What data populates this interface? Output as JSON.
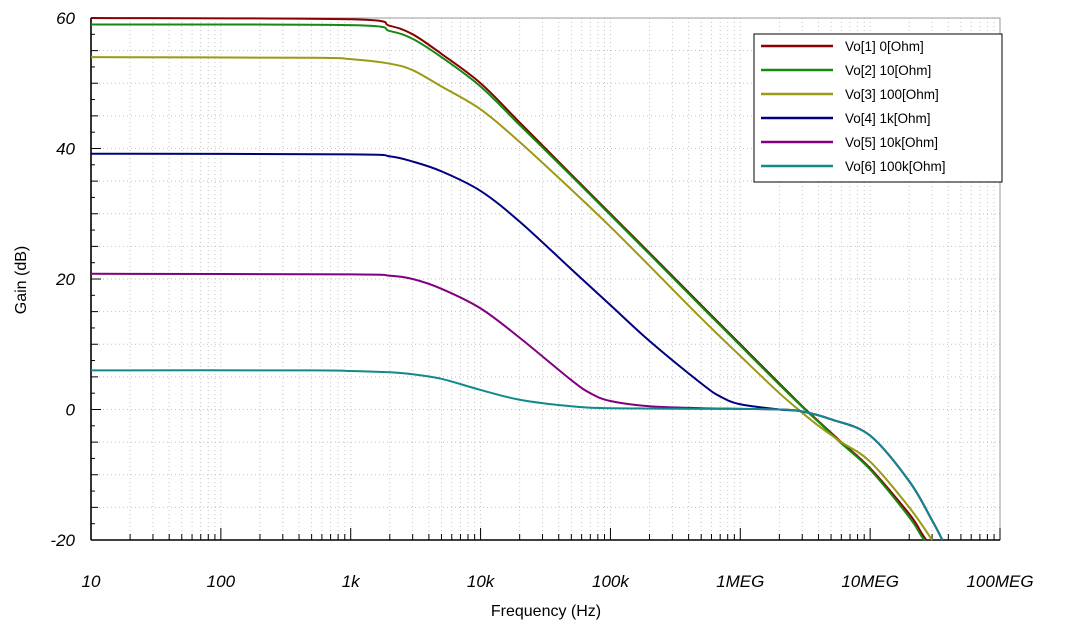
{
  "chart_data": {
    "type": "line",
    "xlabel": "Frequency (Hz)",
    "ylabel": "Gain (dB)",
    "x_scale": "log",
    "xlim": [
      10,
      100000000
    ],
    "ylim": [
      -20,
      60
    ],
    "grid": true,
    "legend_position": "top-right",
    "x_ticks": [
      {
        "value": 10,
        "label": "10"
      },
      {
        "value": 100,
        "label": "100"
      },
      {
        "value": 1000,
        "label": "1k"
      },
      {
        "value": 10000,
        "label": "10k"
      },
      {
        "value": 100000,
        "label": "100k"
      },
      {
        "value": 1000000,
        "label": "1MEG"
      },
      {
        "value": 10000000,
        "label": "10MEG"
      },
      {
        "value": 100000000,
        "label": "100MEG"
      }
    ],
    "y_ticks": [
      {
        "value": 60,
        "label": "60"
      },
      {
        "value": 40,
        "label": "40"
      },
      {
        "value": 20,
        "label": "20"
      },
      {
        "value": 0,
        "label": "0"
      },
      {
        "value": -20,
        "label": "-20"
      }
    ],
    "series": [
      {
        "name": "Vo[1]  0[Ohm]",
        "color": "#8b0000",
        "points": [
          [
            10,
            60
          ],
          [
            1000,
            59.8
          ],
          [
            2000,
            58.8
          ],
          [
            3000,
            57.5
          ],
          [
            5000,
            54.5
          ],
          [
            10000,
            50
          ],
          [
            20000,
            44
          ],
          [
            50000,
            36
          ],
          [
            100000,
            30
          ],
          [
            200000,
            24
          ],
          [
            500000,
            16
          ],
          [
            1000000,
            10
          ],
          [
            2000000,
            4
          ],
          [
            3000000,
            0.5
          ],
          [
            4000000,
            -1.8
          ],
          [
            6000000,
            -5
          ],
          [
            10000000,
            -9
          ],
          [
            20000000,
            -16
          ],
          [
            25000000,
            -19
          ],
          [
            27000000,
            -20
          ]
        ]
      },
      {
        "name": "Vo[2]  10[Ohm]",
        "color": "#138a13",
        "points": [
          [
            10,
            59
          ],
          [
            1000,
            58.9
          ],
          [
            2000,
            58
          ],
          [
            3000,
            56.8
          ],
          [
            5000,
            54
          ],
          [
            10000,
            49.5
          ],
          [
            20000,
            43.6
          ],
          [
            50000,
            35.8
          ],
          [
            100000,
            29.8
          ],
          [
            200000,
            23.8
          ],
          [
            500000,
            15.8
          ],
          [
            1000000,
            9.8
          ],
          [
            2000000,
            3.8
          ],
          [
            3000000,
            0.4
          ],
          [
            4000000,
            -1.9
          ],
          [
            6000000,
            -5.2
          ],
          [
            10000000,
            -9.2
          ],
          [
            20000000,
            -16.5
          ],
          [
            25000000,
            -19.5
          ],
          [
            26500000,
            -20
          ]
        ]
      },
      {
        "name": "Vo[3]  100[Ohm]",
        "color": "#9a9a14",
        "points": [
          [
            10,
            54
          ],
          [
            500,
            53.9
          ],
          [
            1000,
            53.7
          ],
          [
            2000,
            53
          ],
          [
            3000,
            52
          ],
          [
            5000,
            49.5
          ],
          [
            10000,
            46
          ],
          [
            20000,
            41
          ],
          [
            50000,
            33.7
          ],
          [
            100000,
            28
          ],
          [
            200000,
            22
          ],
          [
            500000,
            14
          ],
          [
            1000000,
            8.2
          ],
          [
            2000000,
            2.5
          ],
          [
            3000000,
            -0.5
          ],
          [
            4000000,
            -2.5
          ],
          [
            6000000,
            -5
          ],
          [
            10000000,
            -8
          ],
          [
            20000000,
            -15
          ],
          [
            30000000,
            -20
          ]
        ]
      },
      {
        "name": "Vo[4]  1k[Ohm]",
        "color": "#000080",
        "points": [
          [
            10,
            39.2
          ],
          [
            1000,
            39.1
          ],
          [
            2000,
            38.8
          ],
          [
            3000,
            38
          ],
          [
            5000,
            36.5
          ],
          [
            10000,
            33.5
          ],
          [
            20000,
            28.8
          ],
          [
            50000,
            21.5
          ],
          [
            100000,
            16
          ],
          [
            200000,
            10.5
          ],
          [
            500000,
            4
          ],
          [
            700000,
            2
          ],
          [
            1000000,
            0.8
          ],
          [
            2000000,
            0
          ],
          [
            3000000,
            -0.3
          ],
          [
            5000000,
            -1.5
          ],
          [
            10000000,
            -4
          ],
          [
            20000000,
            -11
          ],
          [
            30000000,
            -17
          ],
          [
            36000000,
            -20
          ]
        ]
      },
      {
        "name": "Vo[5]  10k[Ohm]",
        "color": "#800080",
        "points": [
          [
            10,
            20.8
          ],
          [
            1000,
            20.7
          ],
          [
            2000,
            20.5
          ],
          [
            3000,
            20
          ],
          [
            5000,
            18.5
          ],
          [
            10000,
            15.5
          ],
          [
            20000,
            11
          ],
          [
            50000,
            4.5
          ],
          [
            70000,
            2.5
          ],
          [
            100000,
            1.3
          ],
          [
            200000,
            0.5
          ],
          [
            500000,
            0.2
          ],
          [
            1000000,
            0.1
          ],
          [
            2000000,
            0
          ],
          [
            3000000,
            -0.3
          ],
          [
            5000000,
            -1.5
          ],
          [
            10000000,
            -4
          ],
          [
            20000000,
            -11
          ],
          [
            30000000,
            -17
          ],
          [
            36000000,
            -20
          ]
        ]
      },
      {
        "name": "Vo[6]  100k[Ohm]",
        "color": "#108a8a",
        "points": [
          [
            10,
            6
          ],
          [
            500,
            6
          ],
          [
            1000,
            5.9
          ],
          [
            2000,
            5.7
          ],
          [
            3000,
            5.4
          ],
          [
            5000,
            4.7
          ],
          [
            10000,
            3
          ],
          [
            20000,
            1.5
          ],
          [
            50000,
            0.5
          ],
          [
            100000,
            0.2
          ],
          [
            500000,
            0.1
          ],
          [
            1000000,
            0.1
          ],
          [
            2000000,
            0
          ],
          [
            3000000,
            -0.3
          ],
          [
            5000000,
            -1.5
          ],
          [
            10000000,
            -4
          ],
          [
            20000000,
            -11
          ],
          [
            30000000,
            -17
          ],
          [
            36000000,
            -20
          ]
        ]
      }
    ]
  }
}
